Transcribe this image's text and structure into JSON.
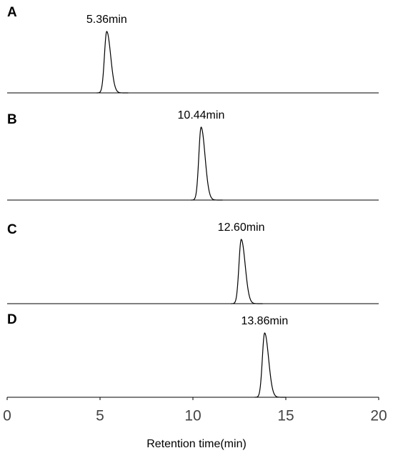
{
  "chart_data": {
    "type": "line",
    "panels": [
      {
        "label": "A",
        "values": [
          5.36
        ],
        "value_labels": [
          "5.36min"
        ]
      },
      {
        "label": "B",
        "values": [
          10.44
        ],
        "value_labels": [
          "10.44min"
        ]
      },
      {
        "label": "C",
        "values": [
          12.6
        ],
        "value_labels": [
          "12.60min"
        ]
      },
      {
        "label": "D",
        "values": [
          13.86
        ],
        "value_labels": [
          "13.86min"
        ]
      }
    ],
    "x_label": "Retention time(min)",
    "xlim": [
      0,
      20
    ],
    "xticks": [
      0,
      5,
      10,
      15,
      20
    ],
    "color": "#000000"
  }
}
